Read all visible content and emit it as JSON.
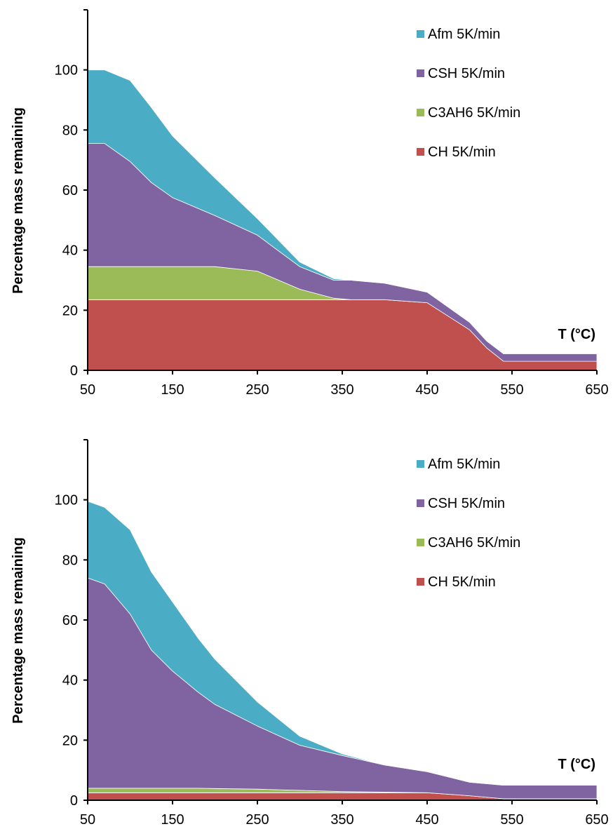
{
  "colors": {
    "Afm": "#4bacc6",
    "CSH": "#8064a2",
    "C3AH6": "#9bbb59",
    "CH": "#c0504d"
  },
  "chart_data": [
    {
      "type": "area",
      "stacked": true,
      "title": "",
      "xlabel": "T (°C)",
      "ylabel": "Percentage mass remaining",
      "xlim": [
        50,
        650
      ],
      "ylim": [
        0,
        120
      ],
      "xticks": [
        50,
        150,
        250,
        350,
        450,
        550,
        650
      ],
      "yticks": [
        0,
        20,
        40,
        60,
        80,
        100
      ],
      "legend_position": "top-right",
      "legend": [
        "Afm 5K/min",
        "CSH 5K/min",
        "C3AH6 5K/min",
        "CH 5K/min"
      ],
      "x": [
        50,
        70,
        100,
        125,
        150,
        200,
        250,
        300,
        340,
        360,
        400,
        450,
        500,
        520,
        540,
        550,
        600,
        650
      ],
      "series": [
        {
          "name": "CH 5K/min",
          "key": "CH",
          "values": [
            23.5,
            23.5,
            23.5,
            23.5,
            23.5,
            23.5,
            23.5,
            23.5,
            23.5,
            23.5,
            23.5,
            22.5,
            13.5,
            7.5,
            3,
            3,
            3,
            3
          ]
        },
        {
          "name": "C3AH6 5K/min",
          "key": "C3AH6",
          "values": [
            11,
            11,
            11,
            11,
            11,
            11,
            9.5,
            3.5,
            0.5,
            0,
            0,
            0,
            0,
            0,
            0,
            0,
            0,
            0
          ]
        },
        {
          "name": "CSH 5K/min",
          "key": "CSH",
          "values": [
            41,
            41,
            35,
            28,
            23,
            17,
            12,
            7.5,
            6,
            6.5,
            5.5,
            3.5,
            2.5,
            2.3,
            2.5,
            2.5,
            2.5,
            2.5
          ]
        },
        {
          "name": "Afm 5K/min",
          "key": "Afm",
          "values": [
            24.5,
            24.5,
            27,
            25,
            20.5,
            12.5,
            5.5,
            1.5,
            0.5,
            0,
            0,
            0,
            0,
            0,
            0,
            0,
            0,
            0
          ]
        }
      ]
    },
    {
      "type": "area",
      "stacked": true,
      "title": "",
      "xlabel": "T (°C)",
      "ylabel": "Percentage mass remaining",
      "xlim": [
        50,
        650
      ],
      "ylim": [
        0,
        120
      ],
      "xticks": [
        50,
        150,
        250,
        350,
        450,
        550,
        650
      ],
      "yticks": [
        0,
        20,
        40,
        60,
        80,
        100
      ],
      "legend_position": "top-right",
      "legend": [
        "Afm 5K/min",
        "CSH 5K/min",
        "C3AH6 5K/min",
        "CH 5K/min"
      ],
      "x": [
        50,
        70,
        100,
        125,
        150,
        180,
        200,
        250,
        300,
        350,
        400,
        450,
        500,
        540,
        550,
        600,
        650
      ],
      "series": [
        {
          "name": "CH 5K/min",
          "key": "CH",
          "values": [
            2.5,
            2.5,
            2.5,
            2.5,
            2.5,
            2.5,
            2.5,
            2.5,
            2.5,
            2.5,
            2.5,
            2.5,
            1.5,
            0.5,
            0.5,
            0.5,
            0.5
          ]
        },
        {
          "name": "C3AH6 5K/min",
          "key": "C3AH6",
          "values": [
            1.5,
            1.5,
            1.5,
            1.5,
            1.5,
            1.5,
            1.4,
            1.2,
            0.8,
            0.4,
            0.2,
            0,
            0,
            0,
            0,
            0,
            0
          ]
        },
        {
          "name": "CSH 5K/min",
          "key": "CSH",
          "values": [
            70,
            68,
            58,
            46,
            39,
            32,
            28,
            21,
            15,
            12,
            9,
            7,
            4.5,
            4.5,
            4.5,
            4.5,
            4.5
          ]
        },
        {
          "name": "Afm 5K/min",
          "key": "Afm",
          "values": [
            25.5,
            25.5,
            28,
            26,
            23,
            18,
            15,
            8,
            3,
            0.5,
            0,
            0,
            0,
            0,
            0,
            0,
            0
          ]
        }
      ]
    }
  ]
}
